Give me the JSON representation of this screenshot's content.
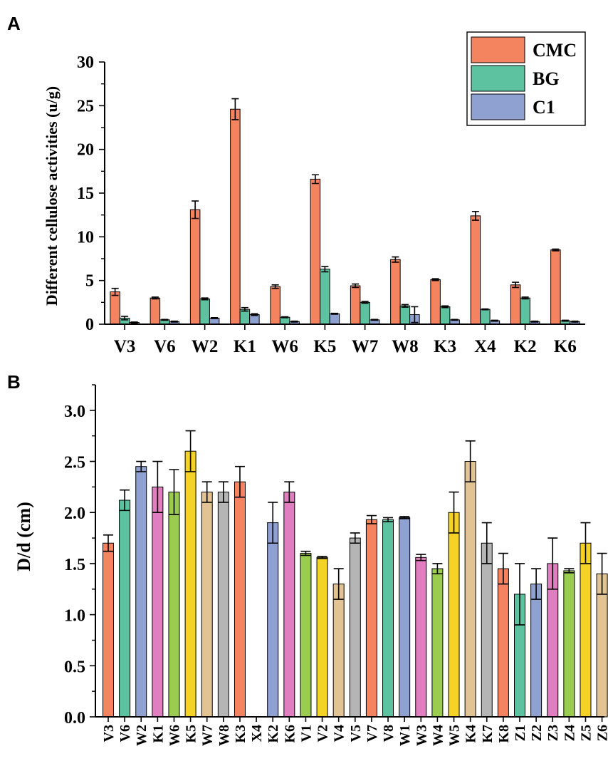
{
  "panels": {
    "a_label": "A",
    "b_label": "B"
  },
  "chart_data": [
    {
      "id": "A",
      "type": "bar",
      "title": "",
      "xlabel": "",
      "ylabel": "Different cellulose activities (u/g)",
      "ylim": [
        0,
        30
      ],
      "yticks": [
        0,
        5,
        10,
        15,
        20,
        25,
        30
      ],
      "legend_position": "top-right",
      "categories": [
        "V3",
        "V6",
        "W2",
        "K1",
        "W6",
        "K5",
        "W7",
        "W8",
        "K3",
        "X4",
        "K2",
        "K6"
      ],
      "series": [
        {
          "name": "CMC",
          "color": "#F4845F",
          "values": [
            3.7,
            3.0,
            13.1,
            24.6,
            4.3,
            16.6,
            4.4,
            7.4,
            5.1,
            12.4,
            4.5,
            8.5
          ],
          "errors": [
            0.4,
            0.1,
            1.0,
            1.2,
            0.2,
            0.5,
            0.2,
            0.3,
            0.1,
            0.5,
            0.3,
            0.1
          ]
        },
        {
          "name": "BG",
          "color": "#5DC2A0",
          "values": [
            0.7,
            0.5,
            2.9,
            1.7,
            0.8,
            6.3,
            2.5,
            2.1,
            2.0,
            1.7,
            3.0,
            0.4
          ],
          "errors": [
            0.2,
            0.05,
            0.1,
            0.2,
            0.05,
            0.3,
            0.1,
            0.15,
            0.1,
            0.05,
            0.1,
            0.05
          ]
        },
        {
          "name": "C1",
          "color": "#8FA1D0",
          "values": [
            0.2,
            0.3,
            0.7,
            1.1,
            0.3,
            1.2,
            0.5,
            1.1,
            0.5,
            0.4,
            0.3,
            0.3
          ],
          "errors": [
            0.05,
            0.05,
            0.05,
            0.1,
            0.05,
            0.05,
            0.05,
            0.9,
            0.05,
            0.05,
            0.05,
            0.05
          ]
        }
      ]
    },
    {
      "id": "B",
      "type": "bar",
      "title": "",
      "xlabel": "",
      "ylabel": "D/d (cm)",
      "ylim": [
        0,
        3.25
      ],
      "yticks": [
        "0.0",
        "0.5",
        "1.0",
        "1.5",
        "2.0",
        "2.5",
        "3.0"
      ],
      "categories": [
        "V3",
        "V6",
        "W2",
        "K1",
        "W6",
        "K5",
        "W7",
        "W8",
        "K3",
        "X4",
        "K2",
        "K6",
        "V1",
        "V2",
        "V4",
        "V5",
        "V7",
        "V8",
        "W1",
        "W3",
        "W4",
        "W5",
        "K4",
        "K7",
        "K8",
        "Z1",
        "Z2",
        "Z3",
        "Z4",
        "Z5",
        "Z6"
      ],
      "values": [
        1.7,
        2.12,
        2.45,
        2.25,
        2.2,
        2.6,
        2.2,
        2.2,
        2.3,
        0,
        1.9,
        2.2,
        1.6,
        1.56,
        1.3,
        1.75,
        1.93,
        1.93,
        1.95,
        1.56,
        1.45,
        2.0,
        2.5,
        1.7,
        1.45,
        1.2,
        1.3,
        1.5,
        1.43,
        1.7,
        1.4
      ],
      "errors": [
        0.08,
        0.1,
        0.05,
        0.25,
        0.22,
        0.2,
        0.1,
        0.1,
        0.15,
        0,
        0.2,
        0.1,
        0.02,
        0.01,
        0.15,
        0.05,
        0.04,
        0.02,
        0.01,
        0.03,
        0.05,
        0.2,
        0.2,
        0.2,
        0.15,
        0.3,
        0.15,
        0.25,
        0.02,
        0.2,
        0.2
      ],
      "colors": [
        "#F4845F",
        "#5DC2A0",
        "#8FA1D0",
        "#E07EC0",
        "#9ACD4F",
        "#F5D326",
        "#E2C394",
        "#B5B5B5"
      ]
    }
  ]
}
